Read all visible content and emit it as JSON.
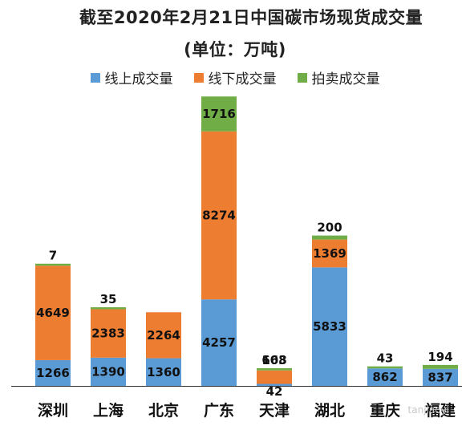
{
  "title": "截至2020年2月21日中国碳市场现货成交量",
  "subtitle": "(单位：万吨)",
  "colors": {
    "online": "#5b9bd5",
    "offline": "#ed7d31",
    "auction": "#70ad47",
    "axis": "#333333"
  },
  "chart_data": {
    "type": "bar",
    "stacked": true,
    "categories": [
      "深圳",
      "上海",
      "北京",
      "广东",
      "天津",
      "湖北",
      "重庆",
      "福建"
    ],
    "series": [
      {
        "name": "线上成交量",
        "values": [
          1266,
          1390,
          1360,
          4257,
          42,
          5833,
          862,
          837
        ]
      },
      {
        "name": "线下成交量",
        "values": [
          4649,
          2383,
          2264,
          8274,
          663,
          1369,
          0,
          0
        ]
      },
      {
        "name": "拍卖成交量",
        "values": [
          7,
          35,
          0,
          1716,
          108,
          200,
          43,
          194
        ]
      }
    ],
    "legend_position": "top",
    "grid": false
  },
  "watermark": "tanjiaoyi"
}
